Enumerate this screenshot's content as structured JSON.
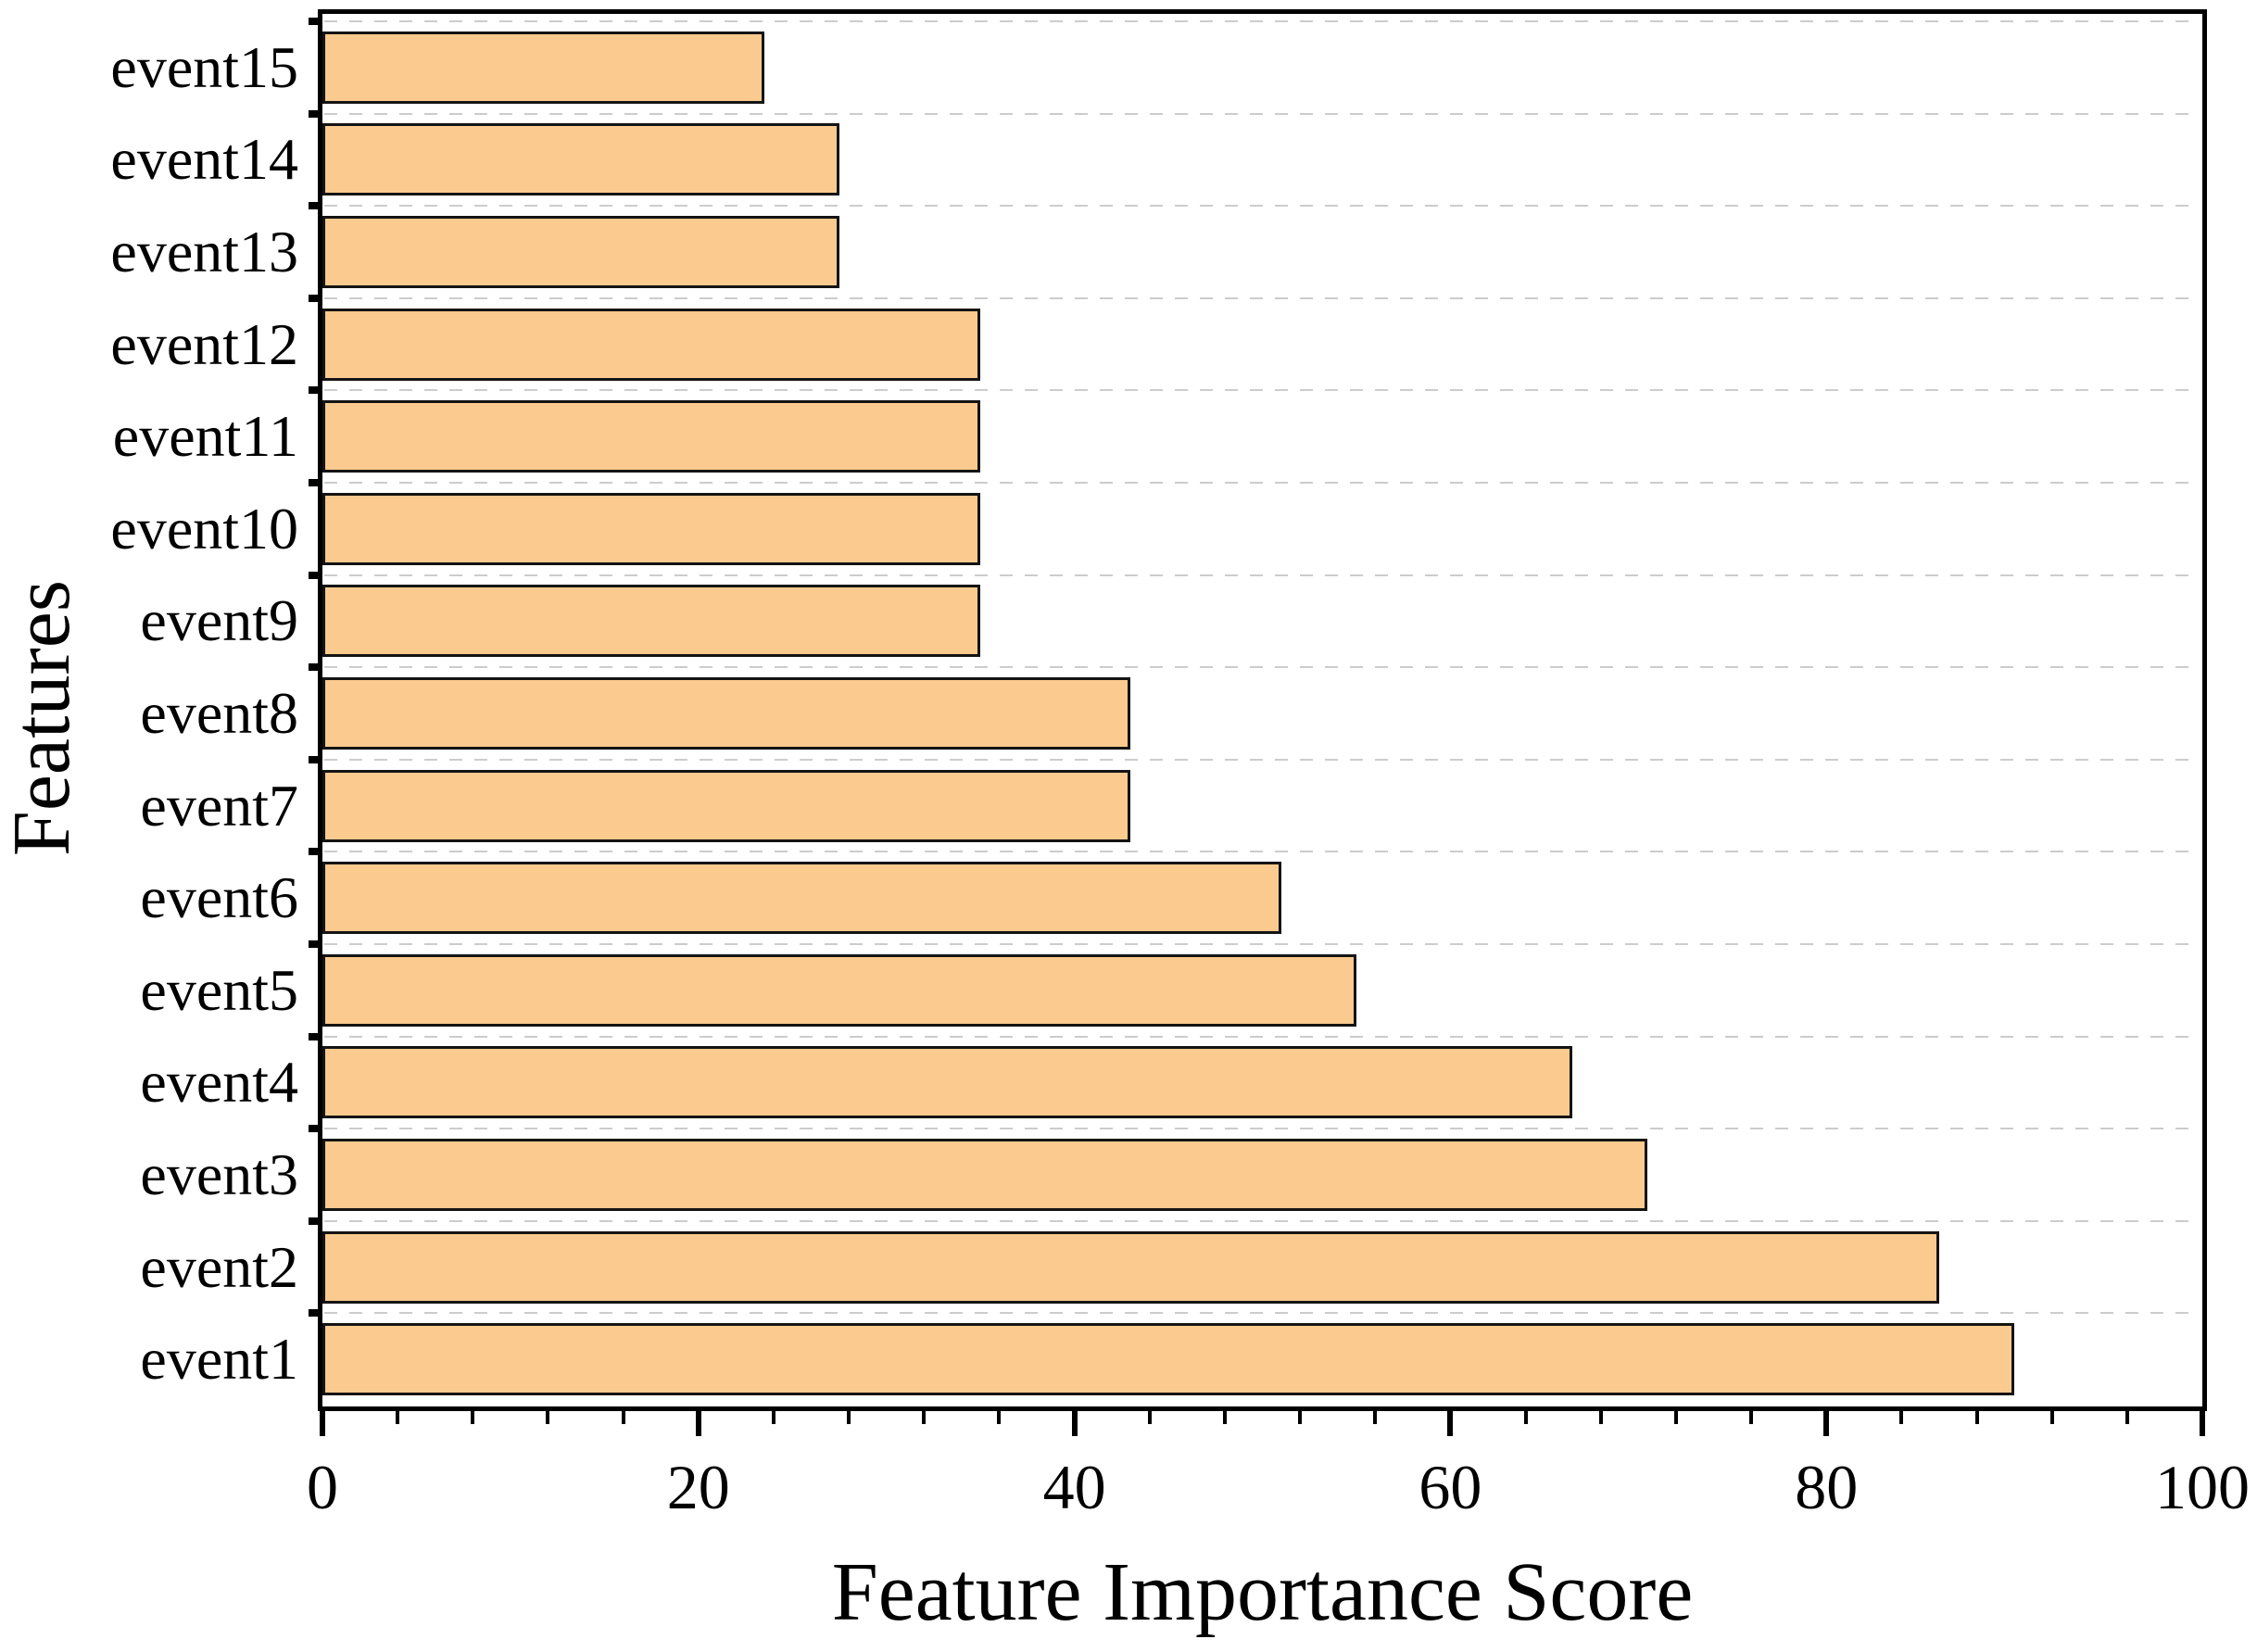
{
  "chart_data": {
    "type": "bar",
    "orientation": "horizontal",
    "title": "",
    "xlabel": "Feature Importance Score",
    "ylabel": "Features",
    "xlim": [
      0,
      100
    ],
    "x_major_ticks": [
      0,
      20,
      40,
      60,
      80,
      100
    ],
    "x_minor_tick_step": 4,
    "grid": "horizontal-dashed-between-categories",
    "legend": "none",
    "categories_top_to_bottom": [
      "event15",
      "event14",
      "event13",
      "event12",
      "event11",
      "event10",
      "event9",
      "event8",
      "event7",
      "event6",
      "event5",
      "event4",
      "event3",
      "event2",
      "event1"
    ],
    "values_top_to_bottom": [
      23.5,
      27.5,
      27.5,
      35,
      35,
      35,
      35,
      43,
      43,
      51,
      55,
      66.5,
      70.5,
      86,
      90
    ],
    "colors": {
      "bar_fill": "#FACA8E",
      "bar_border": "#141414",
      "axis": "#000000",
      "gridline": "#cccccc",
      "text": "#000000",
      "background": "#ffffff"
    }
  }
}
